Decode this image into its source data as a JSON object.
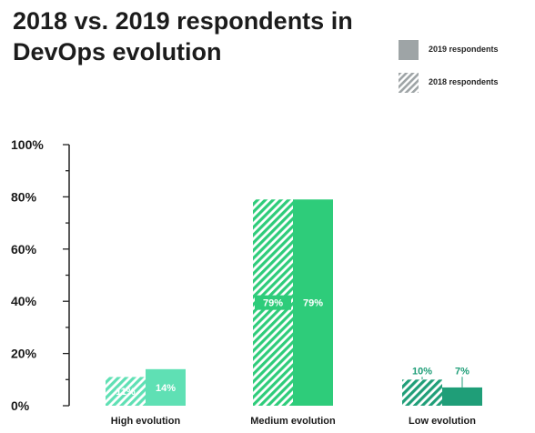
{
  "chart_data": {
    "type": "bar",
    "title": "2018 vs. 2019 respondents in DevOps evolution",
    "categories": [
      "High evolution",
      "Medium evolution",
      "Low evolution"
    ],
    "series": [
      {
        "name": "2018 respondents",
        "values": [
          11,
          79,
          10
        ],
        "pattern": "hatched"
      },
      {
        "name": "2019 respondents",
        "values": [
          14,
          79,
          7
        ],
        "pattern": "solid"
      }
    ],
    "data_labels": {
      "2018 respondents": [
        "11%",
        "79%",
        "10%"
      ],
      "2019 respondents": [
        "14%",
        "79%",
        "7%"
      ]
    },
    "category_colors": [
      "#5fe0b4",
      "#2ecc7a",
      "#1f9e78"
    ],
    "label_colors": [
      "#ffffff",
      "#ffffff",
      "#1f9e78"
    ],
    "yticks": [
      "0%",
      "20%",
      "40%",
      "60%",
      "80%",
      "100%"
    ],
    "ylim": [
      0,
      100
    ],
    "legend_position": "top-right",
    "grid": false
  },
  "legend": {
    "items": [
      {
        "label": "2019 respondents",
        "color": "#9ea4a6",
        "pattern": "solid"
      },
      {
        "label": "2018 respondents",
        "color": "#9ea4a6",
        "pattern": "hatched"
      }
    ]
  }
}
